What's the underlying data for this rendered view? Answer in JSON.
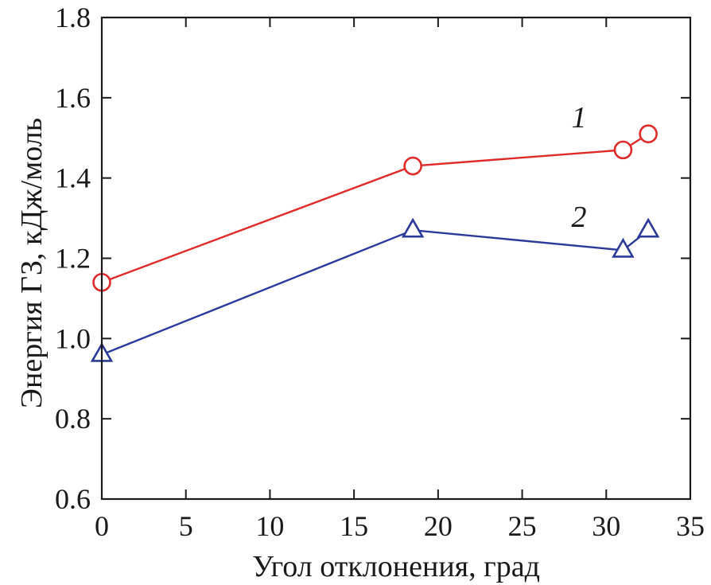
{
  "chart_data": {
    "type": "line",
    "xlabel": "Угол отклонения, град",
    "ylabel": "Энергия ГЗ, кДж/моль",
    "xlim": [
      0,
      35
    ],
    "ylim": [
      0.6,
      1.8
    ],
    "x_ticks": [
      0,
      5,
      10,
      15,
      20,
      25,
      30,
      35
    ],
    "x_tick_labels": [
      "0",
      "5",
      "10",
      "15",
      "20",
      "25",
      "30",
      "35"
    ],
    "y_ticks": [
      0.6,
      0.8,
      1.0,
      1.2,
      1.4,
      1.6,
      1.8
    ],
    "y_tick_labels": [
      "0.6",
      "0.8",
      "1.0",
      "1.2",
      "1.4",
      "1.6",
      "1.8"
    ],
    "grid": false,
    "series": [
      {
        "name": "1",
        "color": "#e02b2b",
        "marker": "circle",
        "x": [
          0,
          18.5,
          31,
          32.5
        ],
        "y": [
          1.14,
          1.43,
          1.47,
          1.51
        ]
      },
      {
        "name": "2",
        "color": "#2b3a99",
        "marker": "triangle",
        "x": [
          0,
          18.5,
          31,
          32.5
        ],
        "y": [
          0.96,
          1.27,
          1.22,
          1.27
        ]
      }
    ]
  }
}
